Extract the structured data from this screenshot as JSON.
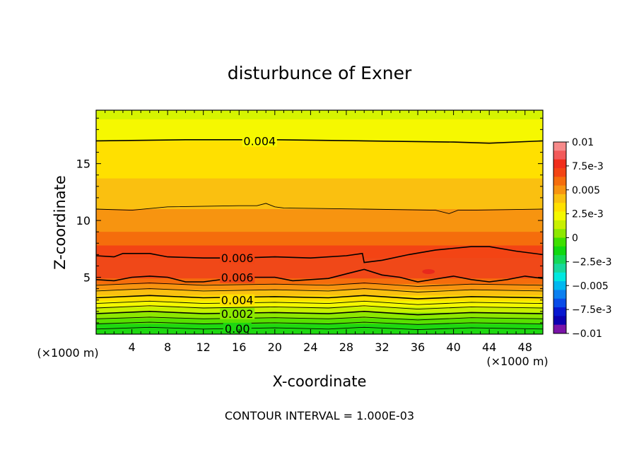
{
  "chart_data": {
    "type": "heatmap",
    "title": "disturbunce of Exner",
    "xlabel": "X-coordinate",
    "ylabel": "Z-coordinate",
    "x_unit_left": "(×1000 m)",
    "x_unit_right": "(×1000 m)",
    "xlim": [
      0,
      50
    ],
    "ylim": [
      0,
      19.7
    ],
    "x_ticks": [
      4,
      8,
      12,
      16,
      20,
      24,
      28,
      32,
      36,
      40,
      44,
      48
    ],
    "x_tick_labels": [
      "4",
      "8",
      "12",
      "16",
      "20",
      "24",
      "28",
      "32",
      "36",
      "40",
      "44",
      "48"
    ],
    "y_ticks": [
      5,
      10,
      15
    ],
    "y_tick_labels": [
      "5",
      "10",
      "15"
    ],
    "footer": "CONTOUR INTERVAL = 1.000E-03",
    "contour_interval": 0.001,
    "colorbar": {
      "range": [
        -0.01,
        0.01
      ],
      "tick_labels": [
        "0.01",
        "7.5e-3",
        "0.005",
        "2.5e-3",
        "0",
        "−2.5e-3",
        "−0.005",
        "−7.5e-3",
        "−0.01"
      ],
      "tick_values": [
        0.01,
        0.0075,
        0.005,
        0.0025,
        0,
        -0.0025,
        -0.005,
        -0.0075,
        -0.01
      ],
      "colors": [
        "#f78a8a",
        "#f25a5a",
        "#f02d1c",
        "#f34414",
        "#f56d0c",
        "#f79410",
        "#fac010",
        "#ffe000",
        "#f4f800",
        "#c8f000",
        "#8de800",
        "#3ee000",
        "#10d810",
        "#14d858",
        "#18d89c",
        "#00e8e0",
        "#00b8f0",
        "#0c80f0",
        "#0a4ce8",
        "#0818d0",
        "#0c00b0",
        "#7a14a8"
      ]
    },
    "contour_labels": [
      {
        "text": "0.004",
        "value": 0.004,
        "x": 18.3,
        "z": 17.0
      },
      {
        "text": "0.006",
        "value": 0.006,
        "x": 15.8,
        "z": 6.7
      },
      {
        "text": "0.006",
        "value": 0.006,
        "x": 15.8,
        "z": 5.0
      },
      {
        "text": "0.004",
        "value": 0.004,
        "x": 15.8,
        "z": 3.0
      },
      {
        "text": "0.002",
        "value": 0.002,
        "x": 15.8,
        "z": 1.8
      },
      {
        "text": "0.00",
        "value": 0.0,
        "x": 15.8,
        "z": 0.5
      }
    ],
    "field_bands": [
      {
        "z_top": 19.7,
        "z_bottom": 18.9,
        "value": 0.0028,
        "color": "#d6f400"
      },
      {
        "z_top": 18.9,
        "z_bottom": 17.0,
        "value": 0.0033,
        "color": "#f6f800"
      },
      {
        "z_top": 17.0,
        "z_bottom": 13.7,
        "value": 0.0038,
        "color": "#ffe000"
      },
      {
        "z_top": 13.7,
        "z_bottom": 11.0,
        "value": 0.0043,
        "color": "#fac010"
      },
      {
        "z_top": 11.0,
        "z_bottom": 9.0,
        "value": 0.0048,
        "color": "#f79410"
      },
      {
        "z_top": 9.0,
        "z_bottom": 7.8,
        "value": 0.0053,
        "color": "#f56d0c"
      },
      {
        "z_top": 7.8,
        "z_bottom": 6.7,
        "value": 0.0058,
        "color": "#f34414"
      },
      {
        "z_top": 6.7,
        "z_bottom": 4.9,
        "value": 0.0061,
        "color": "#f04818"
      },
      {
        "z_top": 4.9,
        "z_bottom": 4.4,
        "value": 0.0055,
        "color": "#f56d0c"
      },
      {
        "z_top": 4.4,
        "z_bottom": 3.9,
        "value": 0.005,
        "color": "#f79410"
      },
      {
        "z_top": 3.9,
        "z_bottom": 3.4,
        "value": 0.0045,
        "color": "#fac010"
      },
      {
        "z_top": 3.4,
        "z_bottom": 2.9,
        "value": 0.004,
        "color": "#ffe000"
      },
      {
        "z_top": 2.9,
        "z_bottom": 2.4,
        "value": 0.0035,
        "color": "#f4f800"
      },
      {
        "z_top": 2.4,
        "z_bottom": 1.9,
        "value": 0.0025,
        "color": "#c8f000"
      },
      {
        "z_top": 1.9,
        "z_bottom": 1.4,
        "value": 0.0018,
        "color": "#8de800"
      },
      {
        "z_top": 1.4,
        "z_bottom": 0.9,
        "value": 0.001,
        "color": "#58e000"
      },
      {
        "z_top": 0.9,
        "z_bottom": 0.0,
        "value": 0.0002,
        "color": "#1ed810"
      }
    ],
    "contours": [
      {
        "value": 0.004,
        "bold": true,
        "points": [
          [
            0,
            17.0
          ],
          [
            10,
            17.1
          ],
          [
            20,
            17.1
          ],
          [
            30,
            17.0
          ],
          [
            40,
            16.9
          ],
          [
            44,
            16.8
          ],
          [
            50,
            17.0
          ]
        ]
      },
      {
        "value": 0.005,
        "bold": false,
        "points": [
          [
            0,
            11.0
          ],
          [
            4,
            10.9
          ],
          [
            8,
            11.2
          ],
          [
            16,
            11.3
          ],
          [
            18,
            11.3
          ],
          [
            19,
            11.5
          ],
          [
            20,
            11.2
          ],
          [
            21,
            11.1
          ],
          [
            30,
            11.0
          ],
          [
            38,
            10.9
          ],
          [
            39.5,
            10.6
          ],
          [
            40.5,
            10.9
          ],
          [
            42,
            10.9
          ],
          [
            50,
            11.0
          ]
        ]
      },
      {
        "value": 0.006,
        "bold": true,
        "points": [
          [
            0,
            6.9
          ],
          [
            2,
            6.8
          ],
          [
            3,
            7.1
          ],
          [
            6,
            7.1
          ],
          [
            8,
            6.8
          ],
          [
            12,
            6.7
          ],
          [
            16,
            6.7
          ],
          [
            20,
            6.8
          ],
          [
            24,
            6.7
          ],
          [
            28,
            6.9
          ],
          [
            29.8,
            7.1
          ],
          [
            30,
            6.3
          ],
          [
            32,
            6.5
          ],
          [
            35,
            7.0
          ],
          [
            38,
            7.4
          ],
          [
            42,
            7.7
          ],
          [
            44,
            7.7
          ],
          [
            47,
            7.3
          ],
          [
            50,
            7.0
          ]
        ]
      },
      {
        "value": 0.006,
        "bold": true,
        "points": [
          [
            0,
            4.8
          ],
          [
            2,
            4.7
          ],
          [
            4,
            5.0
          ],
          [
            6,
            5.1
          ],
          [
            8,
            5.0
          ],
          [
            10,
            4.6
          ],
          [
            12,
            4.6
          ],
          [
            16,
            5.0
          ],
          [
            20,
            5.0
          ],
          [
            22,
            4.7
          ],
          [
            24,
            4.8
          ],
          [
            26,
            4.9
          ],
          [
            28,
            5.3
          ],
          [
            30,
            5.7
          ],
          [
            32,
            5.2
          ],
          [
            34,
            5.0
          ],
          [
            36,
            4.6
          ],
          [
            40,
            5.1
          ],
          [
            42,
            4.8
          ],
          [
            44,
            4.6
          ],
          [
            46,
            4.8
          ],
          [
            48,
            5.1
          ],
          [
            50,
            4.9
          ]
        ]
      },
      {
        "value": 0.005,
        "bold": false,
        "points": [
          [
            0,
            4.3
          ],
          [
            6,
            4.5
          ],
          [
            12,
            4.3
          ],
          [
            20,
            4.4
          ],
          [
            26,
            4.3
          ],
          [
            30,
            4.5
          ],
          [
            36,
            4.2
          ],
          [
            42,
            4.4
          ],
          [
            50,
            4.3
          ]
        ]
      },
      {
        "value": 0.0045,
        "bold": false,
        "points": [
          [
            0,
            3.8
          ],
          [
            6,
            4.0
          ],
          [
            12,
            3.8
          ],
          [
            20,
            3.9
          ],
          [
            26,
            3.8
          ],
          [
            30,
            4.0
          ],
          [
            36,
            3.7
          ],
          [
            42,
            3.9
          ],
          [
            50,
            3.8
          ]
        ]
      },
      {
        "value": 0.004,
        "bold": true,
        "points": [
          [
            0,
            3.2
          ],
          [
            6,
            3.4
          ],
          [
            12,
            3.2
          ],
          [
            20,
            3.3
          ],
          [
            26,
            3.2
          ],
          [
            30,
            3.4
          ],
          [
            36,
            3.1
          ],
          [
            42,
            3.3
          ],
          [
            50,
            3.2
          ]
        ]
      },
      {
        "value": 0.0035,
        "bold": false,
        "points": [
          [
            0,
            2.7
          ],
          [
            6,
            2.9
          ],
          [
            12,
            2.7
          ],
          [
            20,
            2.8
          ],
          [
            26,
            2.7
          ],
          [
            30,
            2.9
          ],
          [
            36,
            2.6
          ],
          [
            42,
            2.8
          ],
          [
            50,
            2.7
          ]
        ]
      },
      {
        "value": 0.003,
        "bold": false,
        "points": [
          [
            0,
            2.3
          ],
          [
            6,
            2.5
          ],
          [
            12,
            2.3
          ],
          [
            20,
            2.4
          ],
          [
            26,
            2.3
          ],
          [
            30,
            2.5
          ],
          [
            36,
            2.2
          ],
          [
            42,
            2.4
          ],
          [
            50,
            2.3
          ]
        ]
      },
      {
        "value": 0.002,
        "bold": true,
        "points": [
          [
            0,
            1.8
          ],
          [
            6,
            2.0
          ],
          [
            12,
            1.8
          ],
          [
            20,
            1.9
          ],
          [
            26,
            1.8
          ],
          [
            30,
            2.0
          ],
          [
            36,
            1.7
          ],
          [
            42,
            1.9
          ],
          [
            50,
            1.8
          ]
        ]
      },
      {
        "value": 0.0015,
        "bold": false,
        "points": [
          [
            0,
            1.35
          ],
          [
            6,
            1.5
          ],
          [
            12,
            1.35
          ],
          [
            20,
            1.45
          ],
          [
            26,
            1.35
          ],
          [
            30,
            1.5
          ],
          [
            36,
            1.25
          ],
          [
            42,
            1.45
          ],
          [
            50,
            1.35
          ]
        ]
      },
      {
        "value": 0.001,
        "bold": false,
        "points": [
          [
            0,
            0.9
          ],
          [
            6,
            1.05
          ],
          [
            12,
            0.9
          ],
          [
            20,
            1.0
          ],
          [
            26,
            0.9
          ],
          [
            30,
            1.05
          ],
          [
            36,
            0.85
          ],
          [
            42,
            1.0
          ],
          [
            50,
            0.9
          ]
        ]
      },
      {
        "value": 0.0005,
        "bold": false,
        "points": [
          [
            0,
            0.45
          ],
          [
            6,
            0.6
          ],
          [
            12,
            0.45
          ],
          [
            20,
            0.55
          ],
          [
            26,
            0.45
          ],
          [
            30,
            0.6
          ],
          [
            36,
            0.4
          ],
          [
            42,
            0.55
          ],
          [
            50,
            0.45
          ]
        ]
      }
    ],
    "highlight_spot": {
      "x": 37.2,
      "z": 5.5,
      "rx": 0.7,
      "rz": 0.22,
      "color": "#e8281c"
    }
  }
}
